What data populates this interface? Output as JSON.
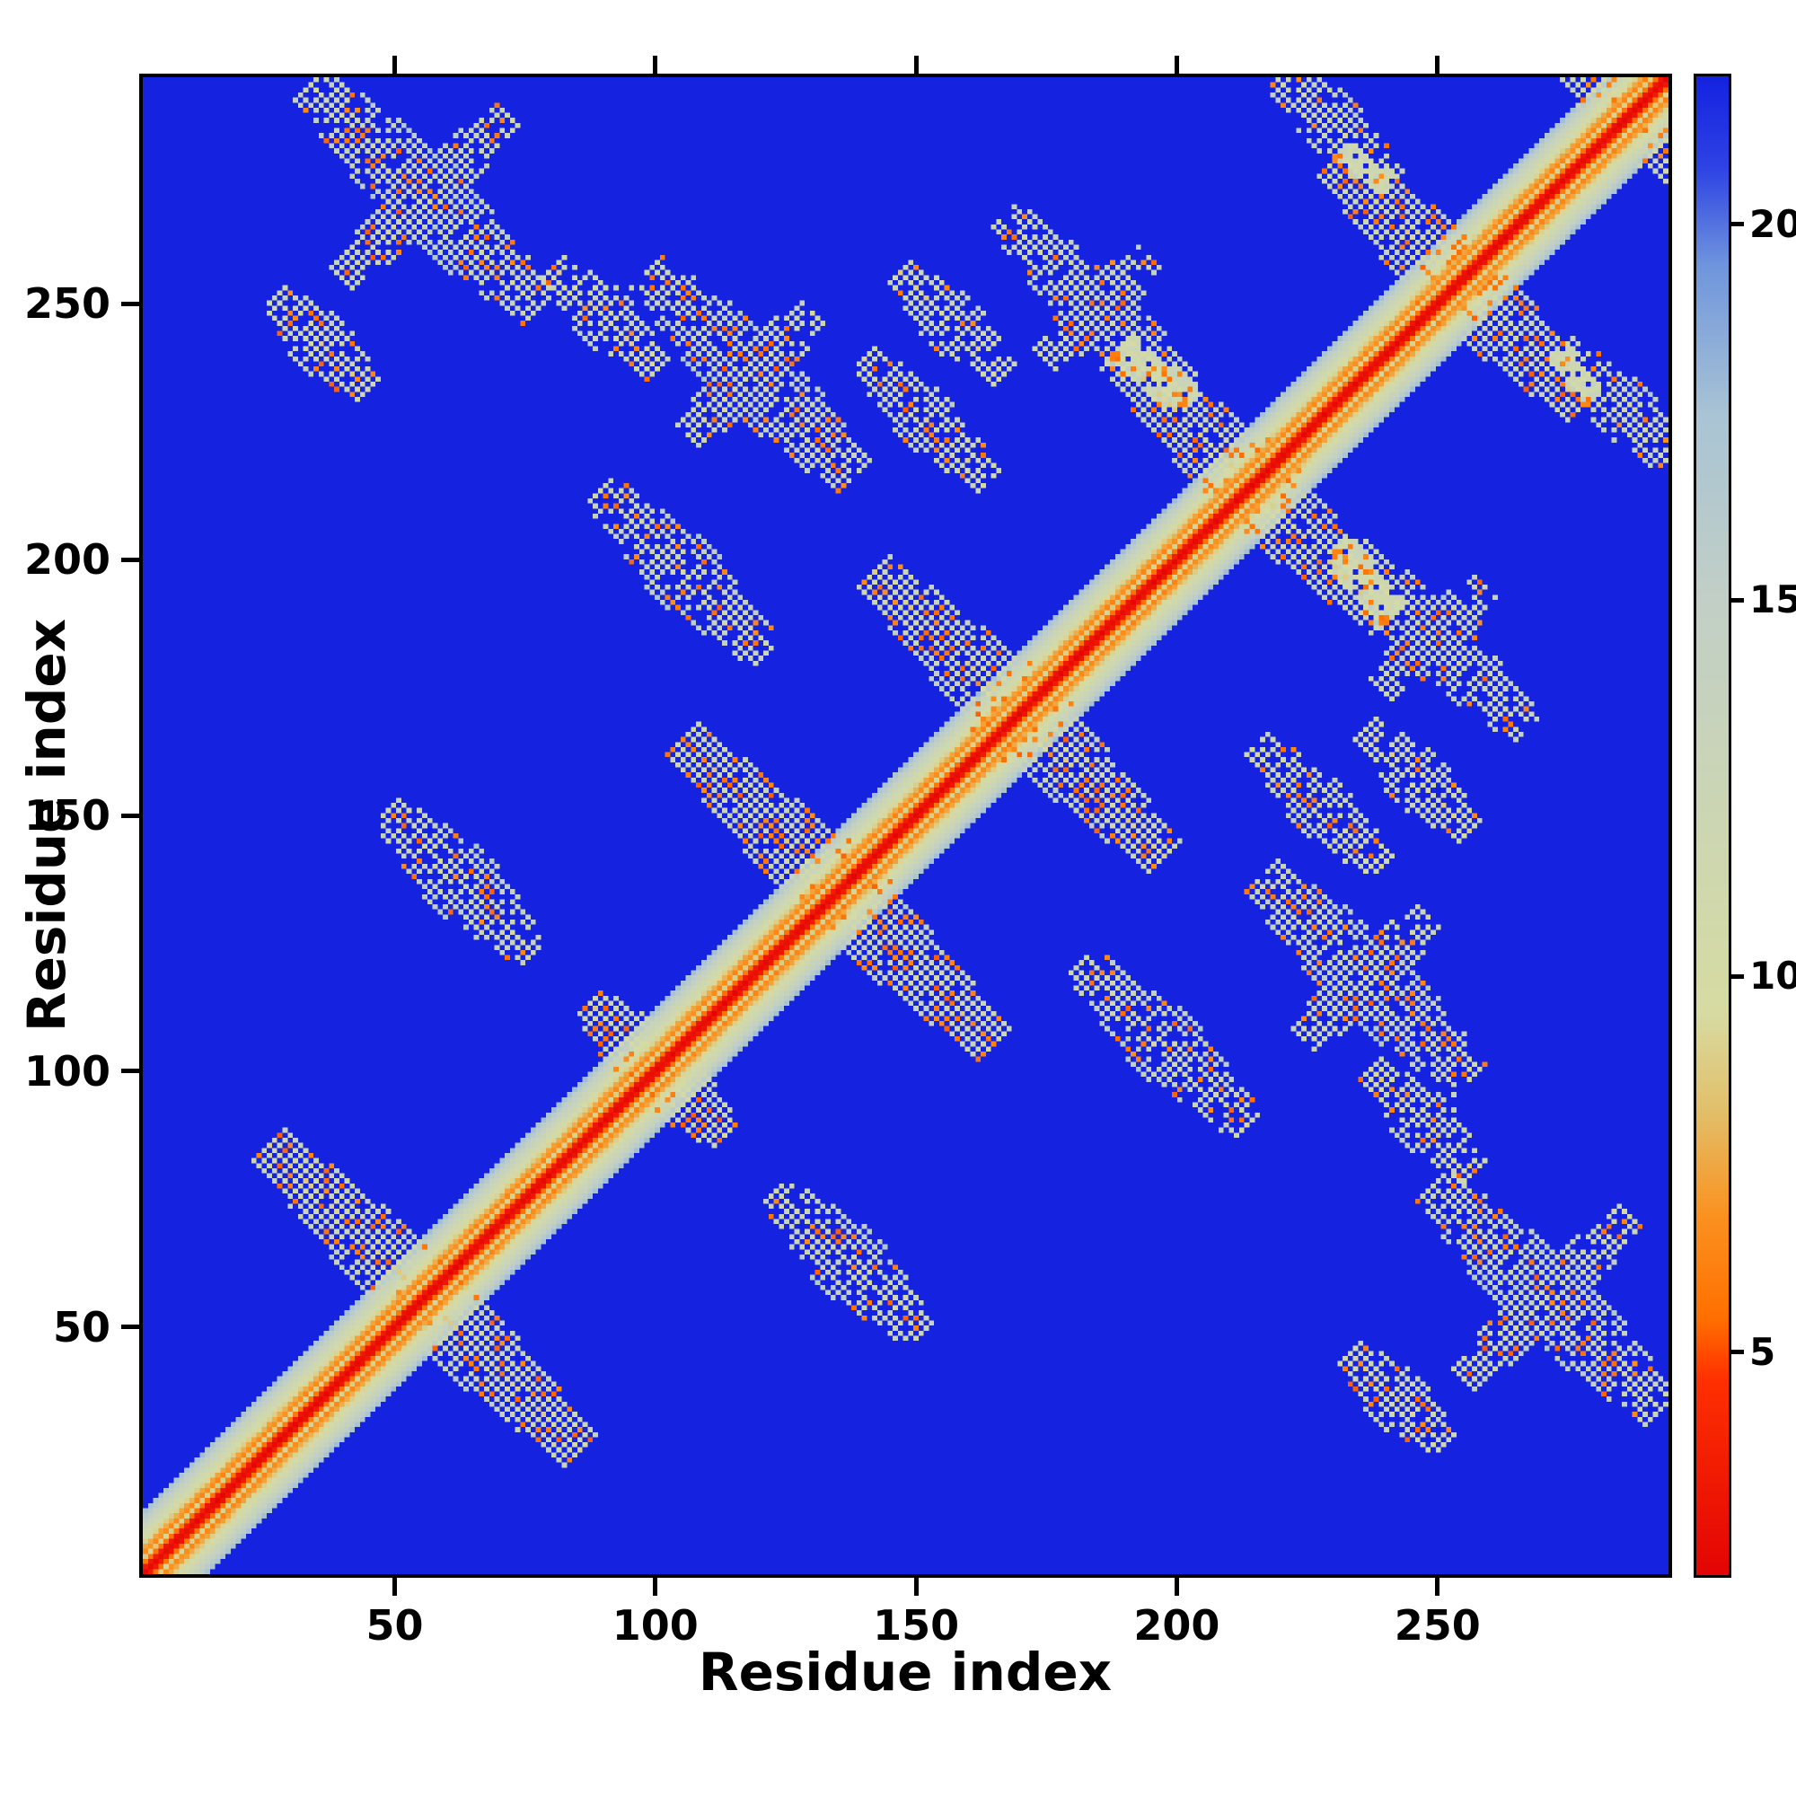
{
  "figure": {
    "kind": "protein residue-residue distance map",
    "background_color": "#ffffff"
  },
  "chart_data": {
    "type": "heatmap",
    "title": "",
    "xlabel": "Residue index",
    "ylabel": "Residue index",
    "x_ticks": [
      50,
      100,
      150,
      200,
      250
    ],
    "y_ticks": [
      50,
      100,
      150,
      200,
      250
    ],
    "colorbar_ticks": [
      5,
      10,
      15,
      20
    ],
    "axis_range": [
      1,
      295
    ],
    "n_residues": 295,
    "vmin": 2,
    "vmax": 22,
    "background_value_color": "#1523e0",
    "diagonal_color": "#e30505",
    "grid": false,
    "legend": "colorbar-right",
    "colormap_stops": [
      [
        2,
        "#e30505"
      ],
      [
        4.6,
        "#ff3000"
      ],
      [
        5.4,
        "#ff6f00"
      ],
      [
        6.8,
        "#fb9220"
      ],
      [
        8.2,
        "#e2c06a"
      ],
      [
        9.5,
        "#d7dba2"
      ],
      [
        12,
        "#ccd6b2"
      ],
      [
        15,
        "#c2cfc6"
      ],
      [
        17.5,
        "#a9c4d4"
      ],
      [
        19.5,
        "#6f95dd"
      ],
      [
        20.8,
        "#2e43e4"
      ],
      [
        22,
        "#1523e0"
      ]
    ],
    "diagonal_profile": [
      0,
      0.8,
      3.4,
      6.6,
      4.2,
      5.2,
      6.8,
      8.0,
      9.2,
      10.4,
      11.8,
      13.4,
      15.2
    ],
    "contact_clusters": [
      {
        "cx": 55,
        "cy": 55,
        "half_len": 30,
        "width": 6,
        "type": "anti"
      },
      {
        "cx": 100,
        "cy": 100,
        "half_len": 13,
        "width": 5,
        "type": "anti"
      },
      {
        "cx": 135,
        "cy": 135,
        "half_len": 30,
        "width": 6,
        "type": "anti"
      },
      {
        "cx": 170,
        "cy": 170,
        "half_len": 28,
        "width": 6,
        "type": "anti"
      },
      {
        "cx": 215,
        "cy": 215,
        "half_len": 26,
        "width": 6,
        "type": "anti"
      },
      {
        "cx": 255,
        "cy": 255,
        "half_len": 24,
        "width": 6,
        "type": "anti"
      },
      {
        "cx": 288,
        "cy": 288,
        "half_len": 14,
        "width": 5,
        "type": "anti"
      },
      {
        "cx": 55,
        "cy": 272,
        "half_len": 22,
        "width": 6,
        "type": "anti"
      },
      {
        "cx": 55,
        "cy": 272,
        "half_len": 16,
        "width": 4,
        "type": "para"
      },
      {
        "cx": 35,
        "cy": 243,
        "half_len": 9,
        "width": 4,
        "type": "anti"
      },
      {
        "cx": 90,
        "cy": 248,
        "half_len": 10,
        "width": 4,
        "type": "anti"
      },
      {
        "cx": 118,
        "cy": 237,
        "half_len": 20,
        "width": 6,
        "type": "anti"
      },
      {
        "cx": 118,
        "cy": 237,
        "half_len": 12,
        "width": 4,
        "type": "para"
      },
      {
        "cx": 152,
        "cy": 228,
        "half_len": 12,
        "width": 4,
        "type": "anti"
      },
      {
        "cx": 157,
        "cy": 247,
        "half_len": 10,
        "width": 4,
        "type": "anti"
      },
      {
        "cx": 105,
        "cy": 198,
        "half_len": 16,
        "width": 5,
        "type": "anti"
      },
      {
        "cx": 62,
        "cy": 137,
        "half_len": 14,
        "width": 5,
        "type": "anti"
      },
      {
        "cx": 185,
        "cy": 250,
        "half_len": 18,
        "width": 5,
        "type": "anti"
      },
      {
        "cx": 185,
        "cy": 250,
        "half_len": 10,
        "width": 4,
        "type": "para"
      },
      {
        "cx": 230,
        "cy": 287,
        "half_len": 12,
        "width": 4,
        "type": "anti"
      }
    ]
  }
}
